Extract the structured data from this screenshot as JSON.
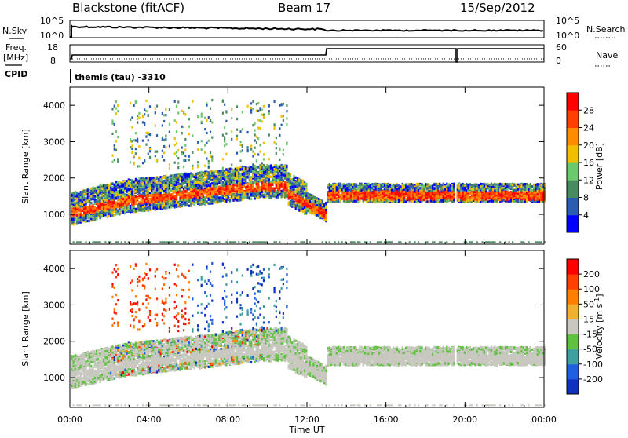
{
  "header": {
    "station": "Blackstone (fitACF)",
    "beam": "Beam 17",
    "date": "15/Sep/2012",
    "cpid_text": "themis (tau) -3310"
  },
  "top_panels": {
    "nsky_label": "N.Sky",
    "nsky_ticks": [
      "10^5",
      "10^0"
    ],
    "nsearch_label": "N.Search",
    "nsearch_ticks": [
      "10^5",
      "10^0"
    ],
    "freq_label_1": "Freq.",
    "freq_label_2": "[MHz]",
    "freq_ticks": [
      "18",
      "8"
    ],
    "nave_label": "Nave",
    "nave_ticks": [
      "60",
      "0"
    ],
    "cpid_label": "CPID"
  },
  "chart_data": [
    {
      "type": "heatmap",
      "name": "power",
      "ylabel": "Slant Range [km]",
      "y_ticks": [
        "4000",
        "3000",
        "2000",
        "1000"
      ],
      "y_tick_values": [
        4000,
        3000,
        2000,
        1000
      ],
      "ylim": [
        180,
        4500
      ],
      "colorbar_label": "Power [dB]",
      "colorbar_ticks": [
        "28",
        "24",
        "20",
        "16",
        "12",
        "8",
        "4"
      ],
      "colorbar_colors": [
        "#0000ff",
        "#2a5db0",
        "#4a8a60",
        "#6cc86c",
        "#f0c000",
        "#ff8c00",
        "#ff4000",
        "#ff0000"
      ]
    },
    {
      "type": "heatmap",
      "name": "velocity",
      "ylabel": "Slant Range [km]",
      "y_ticks": [
        "4000",
        "3000",
        "2000",
        "1000"
      ],
      "y_tick_values": [
        4000,
        3000,
        2000,
        1000
      ],
      "ylim": [
        180,
        4500
      ],
      "colorbar_label": "Velocity [m s^-1]",
      "colorbar_ticks": [
        "200",
        "100",
        "50",
        "15",
        "-15",
        "-50",
        "-100",
        "-200"
      ],
      "colorbar_colors": [
        "#1030c0",
        "#2060e0",
        "#40a0a0",
        "#60c040",
        "#c8c8c0",
        "#f0b030",
        "#ff8000",
        "#ff4000",
        "#ff0000"
      ]
    }
  ],
  "x_axis": {
    "label": "Time UT",
    "ticks": [
      "00:00",
      "04:00",
      "08:00",
      "12:00",
      "16:00",
      "20:00",
      "00:00"
    ],
    "tick_hours": [
      0,
      4,
      8,
      12,
      16,
      20,
      24
    ]
  }
}
